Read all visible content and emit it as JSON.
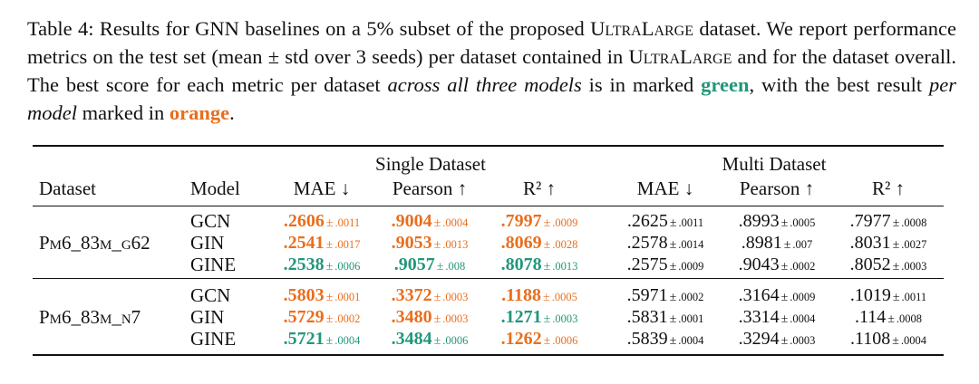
{
  "caption": {
    "prefix": "Table 4: Results for GNN baselines on a 5% subset of the proposed ",
    "dataset_name": "UltraLarge",
    "mid1": " dataset. We report performance metrics on the test set (mean ± std over 3 seeds) per dataset contained in ",
    "dataset_name2": "UltraLarge",
    "mid2": " and for the dataset overall. The best score for each metric per dataset ",
    "emph1": "across all three models",
    "mid3": " is in marked ",
    "green_word": "green",
    "mid4": ", with the best result ",
    "emph2": "per model",
    "mid5": " marked in ",
    "orange_word": "orange",
    "suffix": "."
  },
  "colors": {
    "green": "#22977a",
    "orange": "#ea6e1d"
  },
  "table": {
    "group_single": "Single Dataset",
    "group_multi": "Multi Dataset",
    "col_dataset": "Dataset",
    "col_model": "Model",
    "metric_cols": [
      "MAE ↓",
      "Pearson ↑",
      "R² ↑",
      "MAE ↓",
      "Pearson ↑",
      "R² ↑"
    ],
    "pm": "±",
    "datasets": [
      {
        "name": "Pm6_83m_g62",
        "rows": [
          {
            "model": "GCN",
            "cells": [
              {
                "m": ".2606",
                "s": ".0011",
                "c": "orange"
              },
              {
                "m": ".9004",
                "s": ".0004",
                "c": "orange"
              },
              {
                "m": ".7997",
                "s": ".0009",
                "c": "orange"
              },
              {
                "m": ".2625",
                "s": ".0011",
                "c": "plain"
              },
              {
                "m": ".8993",
                "s": ".0005",
                "c": "plain"
              },
              {
                "m": ".7977",
                "s": ".0008",
                "c": "plain"
              }
            ]
          },
          {
            "model": "GIN",
            "cells": [
              {
                "m": ".2541",
                "s": ".0017",
                "c": "orange"
              },
              {
                "m": ".9053",
                "s": ".0013",
                "c": "orange"
              },
              {
                "m": ".8069",
                "s": ".0028",
                "c": "orange"
              },
              {
                "m": ".2578",
                "s": ".0014",
                "c": "plain"
              },
              {
                "m": ".8981",
                "s": ".007",
                "c": "plain"
              },
              {
                "m": ".8031",
                "s": ".0027",
                "c": "plain"
              }
            ]
          },
          {
            "model": "GINE",
            "cells": [
              {
                "m": ".2538",
                "s": ".0006",
                "c": "green"
              },
              {
                "m": ".9057",
                "s": ".008",
                "c": "green"
              },
              {
                "m": ".8078",
                "s": ".0013",
                "c": "green"
              },
              {
                "m": ".2575",
                "s": ".0009",
                "c": "plain"
              },
              {
                "m": ".9043",
                "s": ".0002",
                "c": "plain"
              },
              {
                "m": ".8052",
                "s": ".0003",
                "c": "plain"
              }
            ]
          }
        ]
      },
      {
        "name": "Pm6_83m_n7",
        "rows": [
          {
            "model": "GCN",
            "cells": [
              {
                "m": ".5803",
                "s": ".0001",
                "c": "orange"
              },
              {
                "m": ".3372",
                "s": ".0003",
                "c": "orange"
              },
              {
                "m": ".1188",
                "s": ".0005",
                "c": "orange"
              },
              {
                "m": ".5971",
                "s": ".0002",
                "c": "plain"
              },
              {
                "m": ".3164",
                "s": ".0009",
                "c": "plain"
              },
              {
                "m": ".1019",
                "s": ".0011",
                "c": "plain"
              }
            ]
          },
          {
            "model": "GIN",
            "cells": [
              {
                "m": ".5729",
                "s": ".0002",
                "c": "orange"
              },
              {
                "m": ".3480",
                "s": ".0003",
                "c": "orange"
              },
              {
                "m": ".1271",
                "s": ".0003",
                "c": "green"
              },
              {
                "m": ".5831",
                "s": ".0001",
                "c": "plain"
              },
              {
                "m": ".3314",
                "s": ".0004",
                "c": "plain"
              },
              {
                "m": ".114",
                "s": ".0008",
                "c": "plain"
              }
            ]
          },
          {
            "model": "GINE",
            "cells": [
              {
                "m": ".5721",
                "s": ".0004",
                "c": "green"
              },
              {
                "m": ".3484",
                "s": ".0006",
                "c": "green"
              },
              {
                "m": ".1262",
                "s": ".0006",
                "c": "orange"
              },
              {
                "m": ".5839",
                "s": ".0004",
                "c": "plain"
              },
              {
                "m": ".3294",
                "s": ".0003",
                "c": "plain"
              },
              {
                "m": ".1108",
                "s": ".0004",
                "c": "plain"
              }
            ]
          }
        ]
      }
    ]
  }
}
